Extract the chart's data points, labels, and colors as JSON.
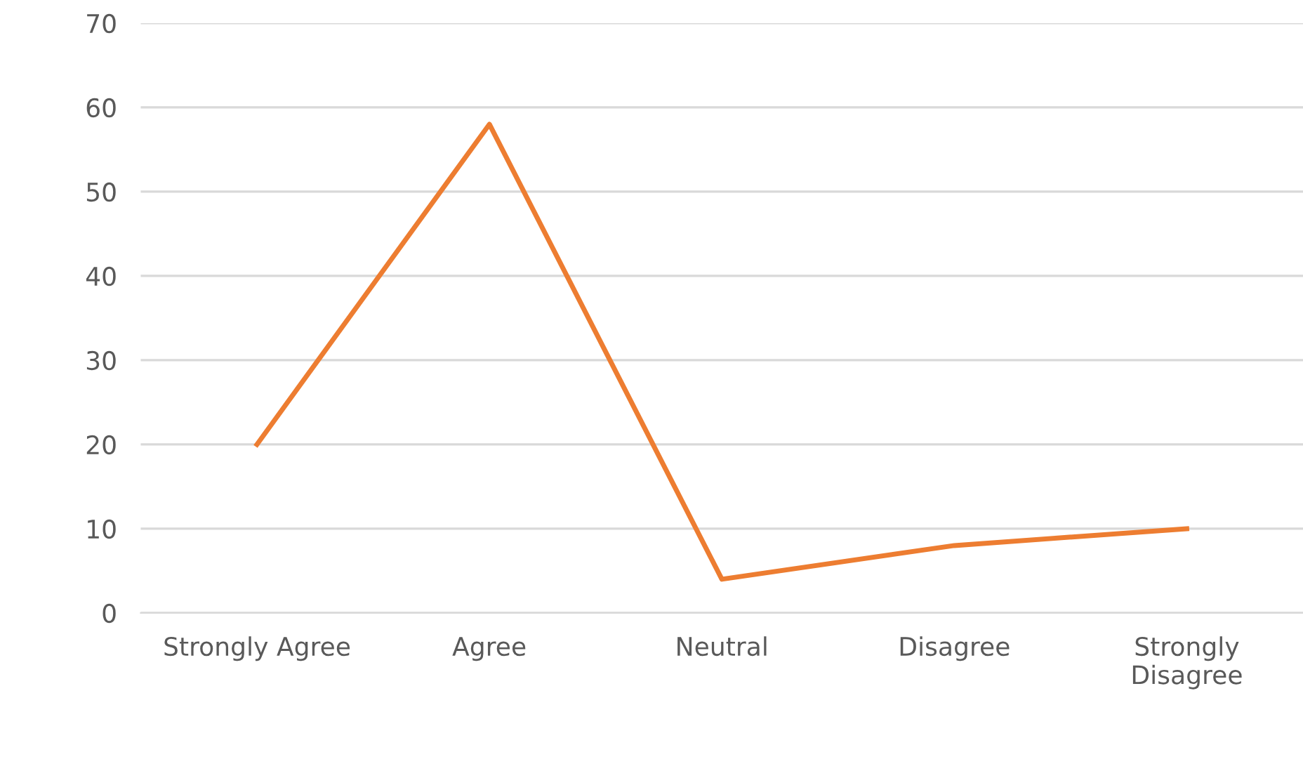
{
  "chart_data": {
    "type": "line",
    "categories": [
      "Strongly Agree",
      "Agree",
      "Neutral",
      "Disagree",
      "Strongly\nDisagree"
    ],
    "series": [
      {
        "color": "#ed7d31",
        "values": [
          20,
          58,
          4,
          8,
          10
        ]
      }
    ],
    "ylim": [
      0,
      70
    ],
    "yticks": [
      0,
      10,
      20,
      30,
      40,
      50,
      60,
      70
    ],
    "grid": "y",
    "legend": false,
    "marker": "none",
    "line_style": "solid"
  }
}
